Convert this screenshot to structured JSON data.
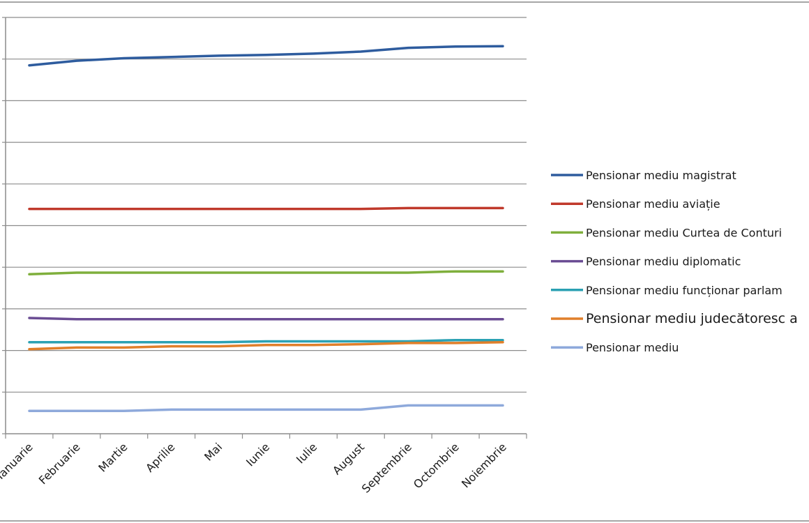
{
  "chart_data": {
    "type": "line",
    "title": "",
    "xlabel": "",
    "ylabel": "",
    "grid": true,
    "legend_position": "right",
    "categories": [
      "Ianuarie",
      "Februarie",
      "Martie",
      "Aprilie",
      "Mai",
      "Iunie",
      "Iulie",
      "August",
      "Septembrie",
      "Octombrie",
      "Noiembrie"
    ],
    "ylim": [
      0,
      10
    ],
    "series": [
      {
        "name": "Pensionar mediu magistrat",
        "color": "#2E5C9E",
        "values": [
          8.85,
          8.96,
          9.02,
          9.05,
          9.08,
          9.1,
          9.13,
          9.18,
          9.27,
          9.3,
          9.31
        ]
      },
      {
        "name": "Pensionar mediu aviație",
        "color": "#C0392B",
        "values": [
          5.4,
          5.4,
          5.4,
          5.4,
          5.4,
          5.4,
          5.4,
          5.4,
          5.42,
          5.42,
          5.42
        ]
      },
      {
        "name": "Pensionar mediu Curtea de Conturi",
        "color": "#7FAF3C",
        "values": [
          3.83,
          3.87,
          3.87,
          3.87,
          3.87,
          3.87,
          3.87,
          3.87,
          3.87,
          3.9,
          3.9
        ]
      },
      {
        "name": "Pensionar mediu diplomatic",
        "color": "#6A4C93",
        "values": [
          2.78,
          2.75,
          2.75,
          2.75,
          2.75,
          2.75,
          2.75,
          2.75,
          2.75,
          2.75,
          2.75
        ]
      },
      {
        "name": "Pensionar mediu funcționar parlam",
        "color": "#2BA1B3",
        "values": [
          2.2,
          2.2,
          2.2,
          2.2,
          2.2,
          2.22,
          2.22,
          2.22,
          2.22,
          2.25,
          2.25
        ]
      },
      {
        "name": "Pensionar mediu judecătoresc a",
        "color": "#E07F2A",
        "values": [
          2.03,
          2.07,
          2.07,
          2.1,
          2.1,
          2.13,
          2.13,
          2.15,
          2.18,
          2.18,
          2.2
        ]
      },
      {
        "name": "Pensionar mediu",
        "color": "#8EA9DB",
        "values": [
          0.55,
          0.55,
          0.55,
          0.58,
          0.58,
          0.58,
          0.58,
          0.58,
          0.68,
          0.68,
          0.68
        ]
      }
    ]
  }
}
